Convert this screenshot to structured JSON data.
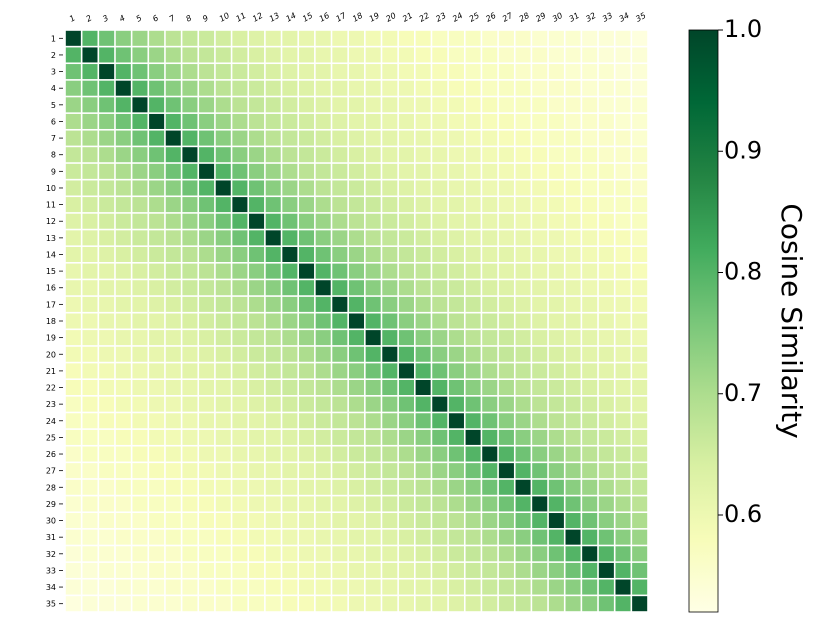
{
  "chart_data": {
    "type": "heatmap",
    "x_categories": [
      "1",
      "2",
      "3",
      "4",
      "5",
      "6",
      "7",
      "8",
      "9",
      "10",
      "11",
      "12",
      "13",
      "14",
      "15",
      "16",
      "17",
      "18",
      "19",
      "20",
      "21",
      "22",
      "23",
      "24",
      "25",
      "26",
      "27",
      "28",
      "29",
      "30",
      "31",
      "32",
      "33",
      "34",
      "35"
    ],
    "y_categories": [
      "1",
      "2",
      "3",
      "4",
      "5",
      "6",
      "7",
      "8",
      "9",
      "10",
      "11",
      "12",
      "13",
      "14",
      "15",
      "16",
      "17",
      "18",
      "19",
      "20",
      "21",
      "22",
      "23",
      "24",
      "25",
      "26",
      "27",
      "28",
      "29",
      "30",
      "31",
      "32",
      "33",
      "34",
      "35"
    ],
    "values": [
      [
        1.0,
        0.8,
        0.77,
        0.74,
        0.72,
        0.7,
        0.68,
        0.67,
        0.66,
        0.65,
        0.64,
        0.63,
        0.62,
        0.62,
        0.61,
        0.61,
        0.6,
        0.6,
        0.59,
        0.59,
        0.58,
        0.58,
        0.57,
        0.57,
        0.57,
        0.56,
        0.56,
        0.56,
        0.55,
        0.55,
        0.55,
        0.54,
        0.54,
        0.54,
        0.53
      ],
      [
        0.8,
        1.0,
        0.8,
        0.77,
        0.74,
        0.72,
        0.7,
        0.68,
        0.67,
        0.66,
        0.65,
        0.64,
        0.63,
        0.62,
        0.62,
        0.61,
        0.61,
        0.6,
        0.6,
        0.59,
        0.59,
        0.58,
        0.58,
        0.57,
        0.57,
        0.57,
        0.56,
        0.56,
        0.56,
        0.55,
        0.55,
        0.55,
        0.54,
        0.54,
        0.54
      ],
      [
        0.77,
        0.8,
        1.0,
        0.8,
        0.77,
        0.74,
        0.72,
        0.7,
        0.68,
        0.67,
        0.66,
        0.65,
        0.64,
        0.63,
        0.62,
        0.62,
        0.61,
        0.61,
        0.6,
        0.6,
        0.59,
        0.59,
        0.58,
        0.58,
        0.57,
        0.57,
        0.57,
        0.56,
        0.56,
        0.56,
        0.55,
        0.55,
        0.55,
        0.54,
        0.54
      ],
      [
        0.74,
        0.77,
        0.8,
        1.0,
        0.8,
        0.77,
        0.74,
        0.72,
        0.7,
        0.68,
        0.67,
        0.66,
        0.65,
        0.64,
        0.63,
        0.62,
        0.62,
        0.61,
        0.61,
        0.6,
        0.6,
        0.59,
        0.59,
        0.58,
        0.58,
        0.57,
        0.57,
        0.57,
        0.56,
        0.56,
        0.56,
        0.55,
        0.55,
        0.55,
        0.54
      ],
      [
        0.72,
        0.74,
        0.77,
        0.8,
        1.0,
        0.8,
        0.77,
        0.74,
        0.72,
        0.7,
        0.68,
        0.67,
        0.66,
        0.65,
        0.64,
        0.63,
        0.62,
        0.62,
        0.61,
        0.61,
        0.6,
        0.6,
        0.59,
        0.59,
        0.58,
        0.58,
        0.57,
        0.57,
        0.57,
        0.56,
        0.56,
        0.56,
        0.55,
        0.55,
        0.55
      ],
      [
        0.7,
        0.72,
        0.74,
        0.77,
        0.8,
        1.0,
        0.8,
        0.77,
        0.74,
        0.72,
        0.7,
        0.68,
        0.67,
        0.66,
        0.65,
        0.64,
        0.63,
        0.62,
        0.62,
        0.61,
        0.61,
        0.6,
        0.6,
        0.59,
        0.59,
        0.58,
        0.58,
        0.57,
        0.57,
        0.57,
        0.56,
        0.56,
        0.56,
        0.55,
        0.55
      ],
      [
        0.68,
        0.7,
        0.72,
        0.74,
        0.77,
        0.8,
        1.0,
        0.8,
        0.77,
        0.74,
        0.72,
        0.7,
        0.68,
        0.67,
        0.66,
        0.65,
        0.64,
        0.63,
        0.62,
        0.62,
        0.61,
        0.61,
        0.6,
        0.6,
        0.59,
        0.59,
        0.58,
        0.58,
        0.57,
        0.57,
        0.57,
        0.56,
        0.56,
        0.56,
        0.55
      ],
      [
        0.67,
        0.68,
        0.7,
        0.72,
        0.74,
        0.77,
        0.8,
        1.0,
        0.8,
        0.77,
        0.74,
        0.72,
        0.7,
        0.68,
        0.67,
        0.66,
        0.65,
        0.64,
        0.63,
        0.62,
        0.62,
        0.61,
        0.61,
        0.6,
        0.6,
        0.59,
        0.59,
        0.58,
        0.58,
        0.57,
        0.57,
        0.57,
        0.56,
        0.56,
        0.56
      ],
      [
        0.66,
        0.67,
        0.68,
        0.7,
        0.72,
        0.74,
        0.77,
        0.8,
        1.0,
        0.8,
        0.77,
        0.74,
        0.72,
        0.7,
        0.68,
        0.67,
        0.66,
        0.65,
        0.64,
        0.63,
        0.62,
        0.62,
        0.61,
        0.61,
        0.6,
        0.6,
        0.59,
        0.59,
        0.58,
        0.58,
        0.57,
        0.57,
        0.57,
        0.56,
        0.56
      ],
      [
        0.65,
        0.66,
        0.67,
        0.68,
        0.7,
        0.72,
        0.74,
        0.77,
        0.8,
        1.0,
        0.8,
        0.77,
        0.74,
        0.72,
        0.7,
        0.68,
        0.67,
        0.66,
        0.65,
        0.64,
        0.63,
        0.62,
        0.62,
        0.61,
        0.61,
        0.6,
        0.6,
        0.59,
        0.59,
        0.58,
        0.58,
        0.57,
        0.57,
        0.57,
        0.56
      ],
      [
        0.64,
        0.65,
        0.66,
        0.67,
        0.68,
        0.7,
        0.72,
        0.74,
        0.77,
        0.8,
        1.0,
        0.8,
        0.77,
        0.74,
        0.72,
        0.7,
        0.68,
        0.67,
        0.66,
        0.65,
        0.64,
        0.63,
        0.62,
        0.62,
        0.61,
        0.61,
        0.6,
        0.6,
        0.59,
        0.59,
        0.58,
        0.58,
        0.57,
        0.57,
        0.57
      ],
      [
        0.63,
        0.64,
        0.65,
        0.66,
        0.67,
        0.68,
        0.7,
        0.72,
        0.74,
        0.77,
        0.8,
        1.0,
        0.8,
        0.77,
        0.74,
        0.72,
        0.7,
        0.68,
        0.67,
        0.66,
        0.65,
        0.64,
        0.63,
        0.62,
        0.62,
        0.61,
        0.61,
        0.6,
        0.6,
        0.59,
        0.59,
        0.58,
        0.58,
        0.57,
        0.57
      ],
      [
        0.62,
        0.63,
        0.64,
        0.65,
        0.66,
        0.67,
        0.68,
        0.7,
        0.72,
        0.74,
        0.77,
        0.8,
        1.0,
        0.8,
        0.77,
        0.74,
        0.72,
        0.7,
        0.68,
        0.67,
        0.66,
        0.65,
        0.64,
        0.63,
        0.62,
        0.62,
        0.61,
        0.61,
        0.6,
        0.6,
        0.59,
        0.59,
        0.58,
        0.58,
        0.57
      ],
      [
        0.62,
        0.62,
        0.63,
        0.64,
        0.65,
        0.66,
        0.67,
        0.68,
        0.7,
        0.72,
        0.74,
        0.77,
        0.8,
        1.0,
        0.8,
        0.77,
        0.74,
        0.72,
        0.7,
        0.68,
        0.67,
        0.66,
        0.65,
        0.64,
        0.63,
        0.62,
        0.62,
        0.61,
        0.61,
        0.6,
        0.6,
        0.59,
        0.59,
        0.58,
        0.58
      ],
      [
        0.61,
        0.62,
        0.62,
        0.63,
        0.64,
        0.65,
        0.66,
        0.67,
        0.68,
        0.7,
        0.72,
        0.74,
        0.77,
        0.8,
        1.0,
        0.8,
        0.77,
        0.74,
        0.72,
        0.7,
        0.68,
        0.67,
        0.66,
        0.65,
        0.64,
        0.63,
        0.62,
        0.62,
        0.61,
        0.61,
        0.6,
        0.6,
        0.59,
        0.59,
        0.58
      ],
      [
        0.61,
        0.61,
        0.62,
        0.62,
        0.63,
        0.64,
        0.65,
        0.66,
        0.67,
        0.68,
        0.7,
        0.72,
        0.74,
        0.77,
        0.8,
        1.0,
        0.8,
        0.77,
        0.74,
        0.72,
        0.7,
        0.68,
        0.67,
        0.66,
        0.65,
        0.64,
        0.63,
        0.62,
        0.62,
        0.61,
        0.61,
        0.6,
        0.6,
        0.59,
        0.59
      ],
      [
        0.6,
        0.61,
        0.61,
        0.62,
        0.62,
        0.63,
        0.64,
        0.65,
        0.66,
        0.67,
        0.68,
        0.7,
        0.72,
        0.74,
        0.77,
        0.8,
        1.0,
        0.8,
        0.77,
        0.74,
        0.72,
        0.7,
        0.68,
        0.67,
        0.66,
        0.65,
        0.64,
        0.63,
        0.62,
        0.62,
        0.61,
        0.61,
        0.6,
        0.6,
        0.59
      ],
      [
        0.6,
        0.6,
        0.61,
        0.61,
        0.62,
        0.62,
        0.63,
        0.64,
        0.65,
        0.66,
        0.67,
        0.68,
        0.7,
        0.72,
        0.74,
        0.77,
        0.8,
        1.0,
        0.8,
        0.77,
        0.74,
        0.72,
        0.7,
        0.68,
        0.67,
        0.66,
        0.65,
        0.64,
        0.63,
        0.62,
        0.62,
        0.61,
        0.61,
        0.6,
        0.6
      ],
      [
        0.59,
        0.6,
        0.6,
        0.61,
        0.61,
        0.62,
        0.62,
        0.63,
        0.64,
        0.65,
        0.66,
        0.67,
        0.68,
        0.7,
        0.72,
        0.74,
        0.77,
        0.8,
        1.0,
        0.8,
        0.77,
        0.74,
        0.72,
        0.7,
        0.68,
        0.67,
        0.66,
        0.65,
        0.64,
        0.63,
        0.62,
        0.62,
        0.61,
        0.61,
        0.6
      ],
      [
        0.59,
        0.59,
        0.6,
        0.6,
        0.61,
        0.61,
        0.62,
        0.62,
        0.63,
        0.64,
        0.65,
        0.66,
        0.67,
        0.68,
        0.7,
        0.72,
        0.74,
        0.77,
        0.8,
        1.0,
        0.8,
        0.77,
        0.74,
        0.72,
        0.7,
        0.68,
        0.67,
        0.66,
        0.65,
        0.64,
        0.63,
        0.62,
        0.62,
        0.61,
        0.61
      ],
      [
        0.58,
        0.59,
        0.59,
        0.6,
        0.6,
        0.61,
        0.61,
        0.62,
        0.62,
        0.63,
        0.64,
        0.65,
        0.66,
        0.67,
        0.68,
        0.7,
        0.72,
        0.74,
        0.77,
        0.8,
        1.0,
        0.8,
        0.77,
        0.74,
        0.72,
        0.7,
        0.68,
        0.67,
        0.66,
        0.65,
        0.64,
        0.63,
        0.62,
        0.62,
        0.61
      ],
      [
        0.58,
        0.58,
        0.59,
        0.59,
        0.6,
        0.6,
        0.61,
        0.61,
        0.62,
        0.62,
        0.63,
        0.64,
        0.65,
        0.66,
        0.67,
        0.68,
        0.7,
        0.72,
        0.74,
        0.77,
        0.8,
        1.0,
        0.8,
        0.77,
        0.74,
        0.72,
        0.7,
        0.68,
        0.67,
        0.66,
        0.65,
        0.64,
        0.63,
        0.62,
        0.62
      ],
      [
        0.57,
        0.58,
        0.58,
        0.59,
        0.59,
        0.6,
        0.6,
        0.61,
        0.61,
        0.62,
        0.62,
        0.63,
        0.64,
        0.65,
        0.66,
        0.67,
        0.68,
        0.7,
        0.72,
        0.74,
        0.77,
        0.8,
        1.0,
        0.8,
        0.77,
        0.74,
        0.72,
        0.7,
        0.68,
        0.67,
        0.66,
        0.65,
        0.64,
        0.63,
        0.62
      ],
      [
        0.57,
        0.57,
        0.58,
        0.58,
        0.59,
        0.59,
        0.6,
        0.6,
        0.61,
        0.61,
        0.62,
        0.62,
        0.63,
        0.64,
        0.65,
        0.66,
        0.67,
        0.68,
        0.7,
        0.72,
        0.74,
        0.77,
        0.8,
        1.0,
        0.8,
        0.77,
        0.74,
        0.72,
        0.7,
        0.68,
        0.67,
        0.66,
        0.65,
        0.64,
        0.63
      ],
      [
        0.57,
        0.57,
        0.57,
        0.58,
        0.58,
        0.59,
        0.59,
        0.6,
        0.6,
        0.61,
        0.61,
        0.62,
        0.62,
        0.63,
        0.64,
        0.65,
        0.66,
        0.67,
        0.68,
        0.7,
        0.72,
        0.74,
        0.77,
        0.8,
        1.0,
        0.8,
        0.77,
        0.74,
        0.72,
        0.7,
        0.68,
        0.67,
        0.66,
        0.65,
        0.64
      ],
      [
        0.56,
        0.57,
        0.57,
        0.57,
        0.58,
        0.58,
        0.59,
        0.59,
        0.6,
        0.6,
        0.61,
        0.61,
        0.62,
        0.62,
        0.63,
        0.64,
        0.65,
        0.66,
        0.67,
        0.68,
        0.7,
        0.72,
        0.74,
        0.77,
        0.8,
        1.0,
        0.8,
        0.77,
        0.74,
        0.72,
        0.7,
        0.68,
        0.67,
        0.66,
        0.65
      ],
      [
        0.56,
        0.56,
        0.57,
        0.57,
        0.57,
        0.58,
        0.58,
        0.59,
        0.59,
        0.6,
        0.6,
        0.61,
        0.61,
        0.62,
        0.62,
        0.63,
        0.64,
        0.65,
        0.66,
        0.67,
        0.68,
        0.7,
        0.72,
        0.74,
        0.77,
        0.8,
        1.0,
        0.8,
        0.77,
        0.74,
        0.72,
        0.7,
        0.68,
        0.67,
        0.66
      ],
      [
        0.56,
        0.56,
        0.56,
        0.57,
        0.57,
        0.57,
        0.58,
        0.58,
        0.59,
        0.59,
        0.6,
        0.6,
        0.61,
        0.61,
        0.62,
        0.62,
        0.63,
        0.64,
        0.65,
        0.66,
        0.67,
        0.68,
        0.7,
        0.72,
        0.74,
        0.77,
        0.8,
        1.0,
        0.8,
        0.77,
        0.74,
        0.72,
        0.7,
        0.68,
        0.67
      ],
      [
        0.55,
        0.56,
        0.56,
        0.56,
        0.57,
        0.57,
        0.57,
        0.58,
        0.58,
        0.59,
        0.59,
        0.6,
        0.6,
        0.61,
        0.61,
        0.62,
        0.62,
        0.63,
        0.64,
        0.65,
        0.66,
        0.67,
        0.68,
        0.7,
        0.72,
        0.74,
        0.77,
        0.8,
        1.0,
        0.8,
        0.77,
        0.74,
        0.72,
        0.7,
        0.68
      ],
      [
        0.55,
        0.55,
        0.56,
        0.56,
        0.56,
        0.57,
        0.57,
        0.57,
        0.58,
        0.58,
        0.59,
        0.59,
        0.6,
        0.6,
        0.61,
        0.61,
        0.62,
        0.62,
        0.63,
        0.64,
        0.65,
        0.66,
        0.67,
        0.68,
        0.7,
        0.72,
        0.74,
        0.77,
        0.8,
        1.0,
        0.8,
        0.77,
        0.74,
        0.72,
        0.7
      ],
      [
        0.55,
        0.55,
        0.55,
        0.56,
        0.56,
        0.56,
        0.57,
        0.57,
        0.57,
        0.58,
        0.58,
        0.59,
        0.59,
        0.6,
        0.6,
        0.61,
        0.61,
        0.62,
        0.62,
        0.63,
        0.64,
        0.65,
        0.66,
        0.67,
        0.68,
        0.7,
        0.72,
        0.74,
        0.77,
        0.8,
        1.0,
        0.8,
        0.77,
        0.74,
        0.72
      ],
      [
        0.54,
        0.55,
        0.55,
        0.55,
        0.56,
        0.56,
        0.56,
        0.57,
        0.57,
        0.57,
        0.58,
        0.58,
        0.59,
        0.59,
        0.6,
        0.6,
        0.61,
        0.61,
        0.62,
        0.62,
        0.63,
        0.64,
        0.65,
        0.66,
        0.67,
        0.68,
        0.7,
        0.72,
        0.74,
        0.77,
        0.8,
        1.0,
        0.8,
        0.77,
        0.74
      ],
      [
        0.54,
        0.54,
        0.55,
        0.55,
        0.55,
        0.56,
        0.56,
        0.56,
        0.57,
        0.57,
        0.57,
        0.58,
        0.58,
        0.59,
        0.59,
        0.6,
        0.6,
        0.61,
        0.61,
        0.62,
        0.62,
        0.63,
        0.64,
        0.65,
        0.66,
        0.67,
        0.68,
        0.7,
        0.72,
        0.74,
        0.77,
        0.8,
        1.0,
        0.8,
        0.77
      ],
      [
        0.54,
        0.54,
        0.54,
        0.55,
        0.55,
        0.55,
        0.56,
        0.56,
        0.56,
        0.57,
        0.57,
        0.57,
        0.58,
        0.58,
        0.59,
        0.59,
        0.6,
        0.6,
        0.61,
        0.61,
        0.62,
        0.62,
        0.63,
        0.64,
        0.65,
        0.66,
        0.67,
        0.68,
        0.7,
        0.72,
        0.74,
        0.77,
        0.8,
        1.0,
        0.8
      ],
      [
        0.53,
        0.54,
        0.54,
        0.54,
        0.55,
        0.55,
        0.55,
        0.56,
        0.56,
        0.56,
        0.57,
        0.57,
        0.57,
        0.58,
        0.58,
        0.59,
        0.59,
        0.6,
        0.6,
        0.61,
        0.61,
        0.62,
        0.62,
        0.63,
        0.64,
        0.65,
        0.66,
        0.67,
        0.68,
        0.7,
        0.72,
        0.74,
        0.77,
        0.8,
        1.0
      ]
    ],
    "colormap": "YlGn",
    "zlim": [
      0.52,
      1.0
    ],
    "zticks": [
      0.6,
      0.7,
      0.8,
      0.9,
      {
        "value": 1.0,
        "label": "1.0"
      }
    ],
    "colorbar_label": "Cosine Similarity"
  }
}
